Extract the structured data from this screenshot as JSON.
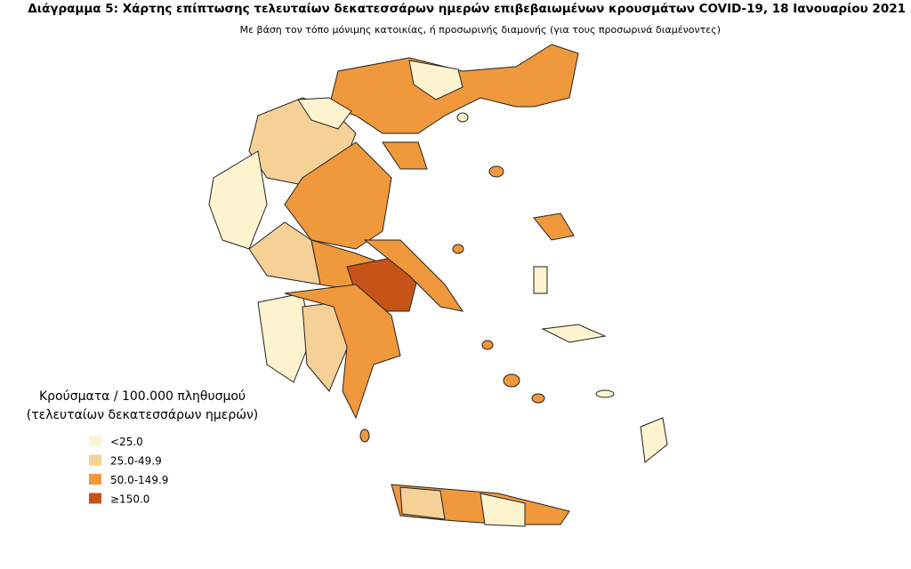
{
  "title": "Διάγραμμα 5: Χάρτης επίπτωσης τελευταίων δεκατεσσάρων ημερών επιβεβαιωμένων κρουσμάτων COVID-19, 18 Ιανουαρίου 2021",
  "subtitle": "Με βάση τον τόπο μόνιμης κατοικίας, ή προσωρινής διαμονής (για τους προσωρινά διαμένοντες)",
  "legend": {
    "title": [
      "Κρούσματα / 100.000 πληθυσμού",
      "(τελευταίων δεκατεσσάρων ημερών)"
    ],
    "items": [
      {
        "label": "<25.0",
        "color": "#fdf4cf"
      },
      {
        "label": "25.0-49.9",
        "color": "#f5d197"
      },
      {
        "label": "50.0-149.9",
        "color": "#f0983c"
      },
      {
        "label": "≥150.0",
        "color": "#c65418"
      }
    ]
  }
}
